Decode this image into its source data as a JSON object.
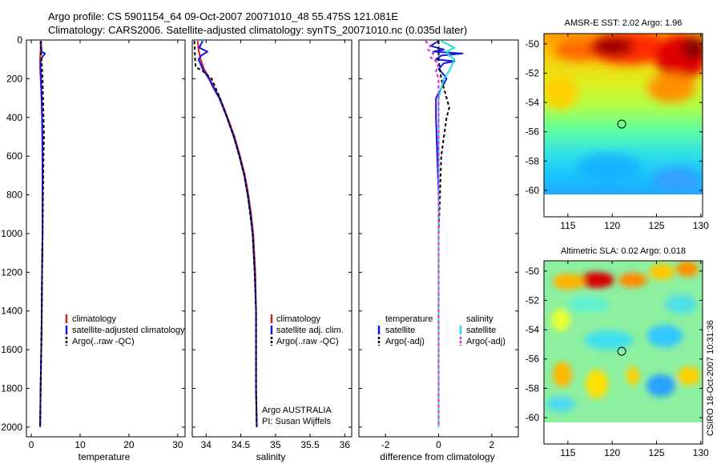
{
  "figure": {
    "title_line1": "Argo profile: CS 5901154_64 09-Oct-2007 20071010_48 55.475S 121.081E",
    "title_line2": "Climatology: CARS2006. Satellite-adjusted climatology: synTS_20071010.nc (0.035d later)",
    "credit": "CSIRO 18-Oct-2007 10:31:36",
    "argo_note_line1": "Argo AUSTRALIA",
    "argo_note_line2": "PI: Susan Wijffels"
  },
  "colors": {
    "climatology": "#d42020",
    "satellite": "#1515e6",
    "argo": "#000000",
    "satellite_salinity": "#22dddd",
    "argo_salinity": "#dd22dd"
  },
  "chart_data": [
    {
      "type": "line",
      "id": "temperature",
      "xlabel": "temperature",
      "xlim": [
        -1,
        31.5
      ],
      "ylim": [
        0,
        2050
      ],
      "y_reversed": true,
      "xticks": [
        0,
        10,
        20,
        30
      ],
      "yticks": [
        0,
        200,
        400,
        600,
        800,
        1000,
        1200,
        1400,
        1600,
        1800,
        2000
      ],
      "legend": [
        "climatology",
        "satellite-adjusted climatology",
        "Argo(..raw -QC)"
      ],
      "series": [
        {
          "name": "climatology",
          "depth": [
            5,
            50,
            100,
            150,
            200,
            300,
            400,
            600,
            800,
            1000,
            1200,
            1500,
            1800,
            2000
          ],
          "values": [
            1.9,
            1.9,
            1.8,
            1.8,
            1.9,
            2.1,
            2.2,
            2.3,
            2.3,
            2.3,
            2.2,
            2.1,
            1.9,
            1.8
          ]
        },
        {
          "name": "satellite-adjusted climatology",
          "depth": [
            5,
            30,
            60,
            70,
            90,
            110,
            150,
            200,
            300,
            400,
            600,
            800,
            1000,
            1200,
            1500,
            1800,
            2000
          ],
          "values": [
            2.0,
            2.0,
            2.1,
            2.8,
            2.2,
            1.9,
            1.9,
            2.0,
            2.1,
            2.2,
            2.3,
            2.3,
            2.3,
            2.2,
            2.1,
            1.9,
            1.8
          ]
        },
        {
          "name": "Argo(..raw -QC)",
          "depth": [
            5,
            40,
            80,
            100,
            150,
            200,
            300,
            400,
            500,
            600,
            800,
            1000,
            1200,
            1500,
            1800,
            2000
          ],
          "values": [
            1.9,
            2.0,
            2.0,
            2.1,
            2.2,
            2.3,
            2.4,
            2.5,
            2.6,
            2.5,
            2.4,
            2.3,
            2.2,
            2.1,
            1.9,
            1.8
          ]
        }
      ]
    },
    {
      "type": "line",
      "id": "salinity",
      "xlabel": "salinity",
      "xlim": [
        33.8,
        36.1
      ],
      "ylim": [
        0,
        2050
      ],
      "y_reversed": true,
      "xticks": [
        34,
        34.5,
        35,
        35.5,
        36
      ],
      "xticklabels": [
        "34",
        "34.5",
        "35",
        "35.5",
        "36"
      ],
      "legend": [
        "climatology",
        "satellite adj. clim.",
        "Argo(..raw -QC)"
      ],
      "series": [
        {
          "name": "climatology",
          "depth": [
            5,
            50,
            100,
            150,
            200,
            250,
            300,
            400,
            500,
            600,
            700,
            800,
            900,
            1000,
            1200,
            1400,
            1600,
            1800,
            2000
          ],
          "values": [
            33.88,
            33.89,
            33.92,
            33.97,
            34.05,
            34.12,
            34.2,
            34.31,
            34.41,
            34.49,
            34.56,
            34.61,
            34.65,
            34.68,
            34.71,
            34.72,
            34.72,
            34.72,
            34.73
          ]
        },
        {
          "name": "satellite adj. clim.",
          "depth": [
            5,
            40,
            60,
            80,
            100,
            150,
            200,
            250,
            300,
            400,
            500,
            600,
            700,
            800,
            900,
            1000,
            1200,
            1400,
            1600,
            1800,
            2000
          ],
          "values": [
            33.95,
            33.9,
            34.02,
            33.93,
            33.89,
            33.95,
            34.04,
            34.11,
            34.19,
            34.3,
            34.4,
            34.48,
            34.55,
            34.6,
            34.64,
            34.67,
            34.7,
            34.72,
            34.72,
            34.72,
            34.73
          ]
        },
        {
          "name": "Argo(..raw -QC)",
          "depth": [
            5,
            100,
            140,
            160,
            200,
            250,
            300,
            400,
            500,
            600,
            700,
            800,
            1000,
            1200,
            1400,
            1600,
            1800,
            2000
          ],
          "values": [
            33.83,
            33.84,
            33.85,
            33.95,
            34.08,
            34.14,
            34.2,
            34.3,
            34.4,
            34.48,
            34.55,
            34.6,
            34.67,
            34.7,
            34.72,
            34.72,
            34.72,
            34.73
          ]
        }
      ]
    },
    {
      "type": "line",
      "id": "difference",
      "xlabel": "difference from climatology",
      "xlim": [
        -3,
        3
      ],
      "ylim": [
        0,
        2050
      ],
      "y_reversed": true,
      "xticks": [
        -2,
        0,
        2
      ],
      "legend_groups": [
        {
          "heading": "temperature",
          "items": [
            "satellite",
            "Argo(-adj)"
          ]
        },
        {
          "heading": "salinity",
          "items": [
            "satellite",
            "Argo(-adj)"
          ]
        }
      ],
      "series": [
        {
          "name": "temperature satellite",
          "depth": [
            5,
            30,
            50,
            60,
            70,
            80,
            100,
            110,
            120,
            150,
            180,
            200,
            250,
            300,
            400,
            600,
            800,
            1000,
            1400,
            2000
          ],
          "values": [
            0,
            -0.3,
            0.2,
            -0.2,
            0.9,
            0.1,
            -0.1,
            0.6,
            0.2,
            0.0,
            0.2,
            0.3,
            0.1,
            -0.1,
            -0.1,
            -0.05,
            0.0,
            0.0,
            0.0,
            0.0
          ]
        },
        {
          "name": "temperature Argo(-adj)",
          "depth": [
            5,
            100,
            200,
            300,
            350,
            400,
            500,
            600,
            800,
            1000,
            2000
          ],
          "values": [
            0,
            0,
            0.1,
            0.3,
            0.4,
            0.3,
            0.2,
            0.1,
            0.05,
            0.0,
            0.0
          ]
        },
        {
          "name": "salinity satellite",
          "depth": [
            5,
            40,
            60,
            80,
            100,
            130,
            160,
            200,
            300,
            500,
            1000,
            2000
          ],
          "values": [
            0.1,
            0.6,
            0.3,
            0.4,
            0.6,
            0.5,
            0.4,
            0.2,
            0.0,
            0.0,
            0.0,
            0.0
          ]
        },
        {
          "name": "salinity Argo(-adj)",
          "depth": [
            5,
            30,
            50,
            70,
            90,
            120,
            160,
            200,
            250,
            300,
            2000
          ],
          "values": [
            -0.5,
            -0.3,
            -0.4,
            -0.2,
            -0.3,
            0.0,
            -0.1,
            0.0,
            0.0,
            0.0,
            0.0
          ]
        }
      ]
    },
    {
      "type": "heatmap",
      "id": "sst",
      "title": "AMSR-E SST: 2.02 Argo: 1.96",
      "xlim": [
        112.3,
        130.2
      ],
      "ylim": [
        -61.8,
        -49.3
      ],
      "data_lat_range": [
        -60,
        -49.3
      ],
      "xticks": [
        115,
        120,
        125,
        130
      ],
      "yticks": [
        -50,
        -52,
        -54,
        -56,
        -58,
        -60
      ],
      "marker": {
        "lon": 121.081,
        "lat": -55.475
      }
    },
    {
      "type": "heatmap",
      "id": "sla",
      "title": "Altimetric SLA: 0.02 Argo: 0.018",
      "xlim": [
        112.3,
        130.2
      ],
      "ylim": [
        -61.8,
        -49.3
      ],
      "data_lat_range": [
        -60,
        -49.3
      ],
      "xticks": [
        115,
        120,
        125,
        130
      ],
      "yticks": [
        -50,
        -52,
        -54,
        -56,
        -58,
        -60
      ],
      "marker": {
        "lon": 121.081,
        "lat": -55.475
      }
    }
  ]
}
